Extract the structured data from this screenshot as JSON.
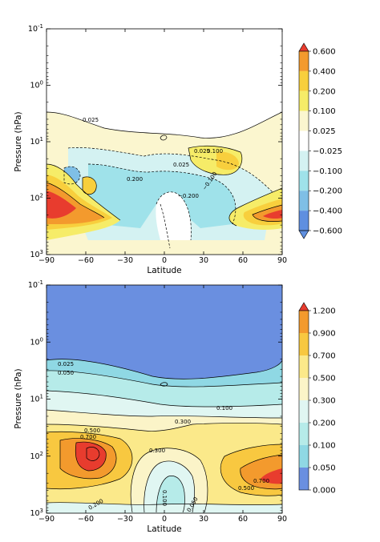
{
  "chart_data": [
    {
      "type": "heatmap",
      "subtype": "filled-contour",
      "xlabel": "Latitude",
      "ylabel": "Pressure (hPa)",
      "x_ticks": [
        "−90",
        "−60",
        "−30",
        "0",
        "30",
        "60",
        "90"
      ],
      "x_tick_values": [
        -90,
        -60,
        -30,
        0,
        30,
        60,
        90
      ],
      "xlim": [
        -90,
        90
      ],
      "y_scale": "log",
      "y_inverted": true,
      "ylim": [
        1000,
        0.1
      ],
      "y_ticks": [
        {
          "base": "10",
          "exp": "-1",
          "value": 0.1
        },
        {
          "base": "10",
          "exp": "0",
          "value": 1
        },
        {
          "base": "10",
          "exp": "1",
          "value": 10
        },
        {
          "base": "10",
          "exp": "2",
          "value": 100
        },
        {
          "base": "10",
          "exp": "3",
          "value": 1000
        }
      ],
      "colorbar": {
        "levels": [
          "0.600",
          "0.400",
          "0.200",
          "0.100",
          "0.025",
          "−0.025",
          "−0.100",
          "−0.200",
          "−0.400",
          "−0.600"
        ],
        "colors": [
          "#e83c2e",
          "#f39a2d",
          "#f8cf3d",
          "#f6ec68",
          "#fbf6cf",
          "#ffffff",
          "#d4f2f2",
          "#9fe2ea",
          "#7fbfe6",
          "#5f8fe0"
        ],
        "extend": "both"
      },
      "contour_labels": [
        "0.025",
        "0.025",
        "0.100",
        "0.025",
        "0.200",
        "−0.200",
        "−0.100"
      ],
      "regions": [
        {
          "name": "sh-high-lat-positive",
          "lat_range": [
            -90,
            -55
          ],
          "pressure_range": [
            40,
            300
          ],
          "level": "0.600"
        },
        {
          "name": "nh-high-lat-positive",
          "lat_range": [
            55,
            90
          ],
          "pressure_range": [
            50,
            250
          ],
          "level": "0.600"
        },
        {
          "name": "nh-upper-positive",
          "lat_range": [
            30,
            65
          ],
          "pressure_range": [
            15,
            35
          ],
          "level": "0.200"
        },
        {
          "name": "tropical-negative",
          "lat_range": [
            -55,
            50
          ],
          "pressure_range": [
            25,
            700
          ],
          "level": "−0.200"
        }
      ]
    },
    {
      "type": "heatmap",
      "subtype": "filled-contour",
      "xlabel": "Latitude",
      "ylabel": "Pressure (hPa)",
      "x_ticks": [
        "−90",
        "−60",
        "−30",
        "0",
        "30",
        "60",
        "90"
      ],
      "x_tick_values": [
        -90,
        -60,
        -30,
        0,
        30,
        60,
        90
      ],
      "xlim": [
        -90,
        90
      ],
      "y_scale": "log",
      "y_inverted": true,
      "ylim": [
        1000,
        0.1
      ],
      "y_ticks": [
        {
          "base": "10",
          "exp": "-1",
          "value": 0.1
        },
        {
          "base": "10",
          "exp": "0",
          "value": 1
        },
        {
          "base": "10",
          "exp": "1",
          "value": 10
        },
        {
          "base": "10",
          "exp": "2",
          "value": 100
        },
        {
          "base": "10",
          "exp": "3",
          "value": 1000
        }
      ],
      "colorbar": {
        "levels": [
          "1.200",
          "0.900",
          "0.700",
          "0.500",
          "0.300",
          "0.200",
          "0.100",
          "0.050",
          "0.000"
        ],
        "colors": [
          "#e83c2e",
          "#f39a2d",
          "#f8c840",
          "#fbe98a",
          "#fbf4c8",
          "#e0f6f2",
          "#b6ebe9",
          "#8fd8e4",
          "#6a8fe0"
        ],
        "extend": "max"
      },
      "contour_labels": [
        "0.025",
        "0.050",
        "0.100",
        "0.300",
        "0.500",
        "0.700",
        "0.300",
        "0.500",
        "0.700",
        "0.200",
        "0.050",
        "0.100"
      ],
      "regions": [
        {
          "name": "upper-low-values",
          "lat_range": [
            -90,
            90
          ],
          "pressure_range": [
            0.1,
            3
          ],
          "level": "0.000"
        },
        {
          "name": "sh-max",
          "lat_range": [
            -75,
            -45
          ],
          "pressure_range": [
            60,
            150
          ],
          "level": "1.200"
        },
        {
          "name": "nh-max",
          "lat_range": [
            50,
            90
          ],
          "pressure_range": [
            100,
            300
          ],
          "level": "0.900"
        },
        {
          "name": "tropical-min",
          "lat_range": [
            -20,
            30
          ],
          "pressure_range": [
            150,
            1000
          ],
          "level": "0.050"
        }
      ]
    }
  ]
}
